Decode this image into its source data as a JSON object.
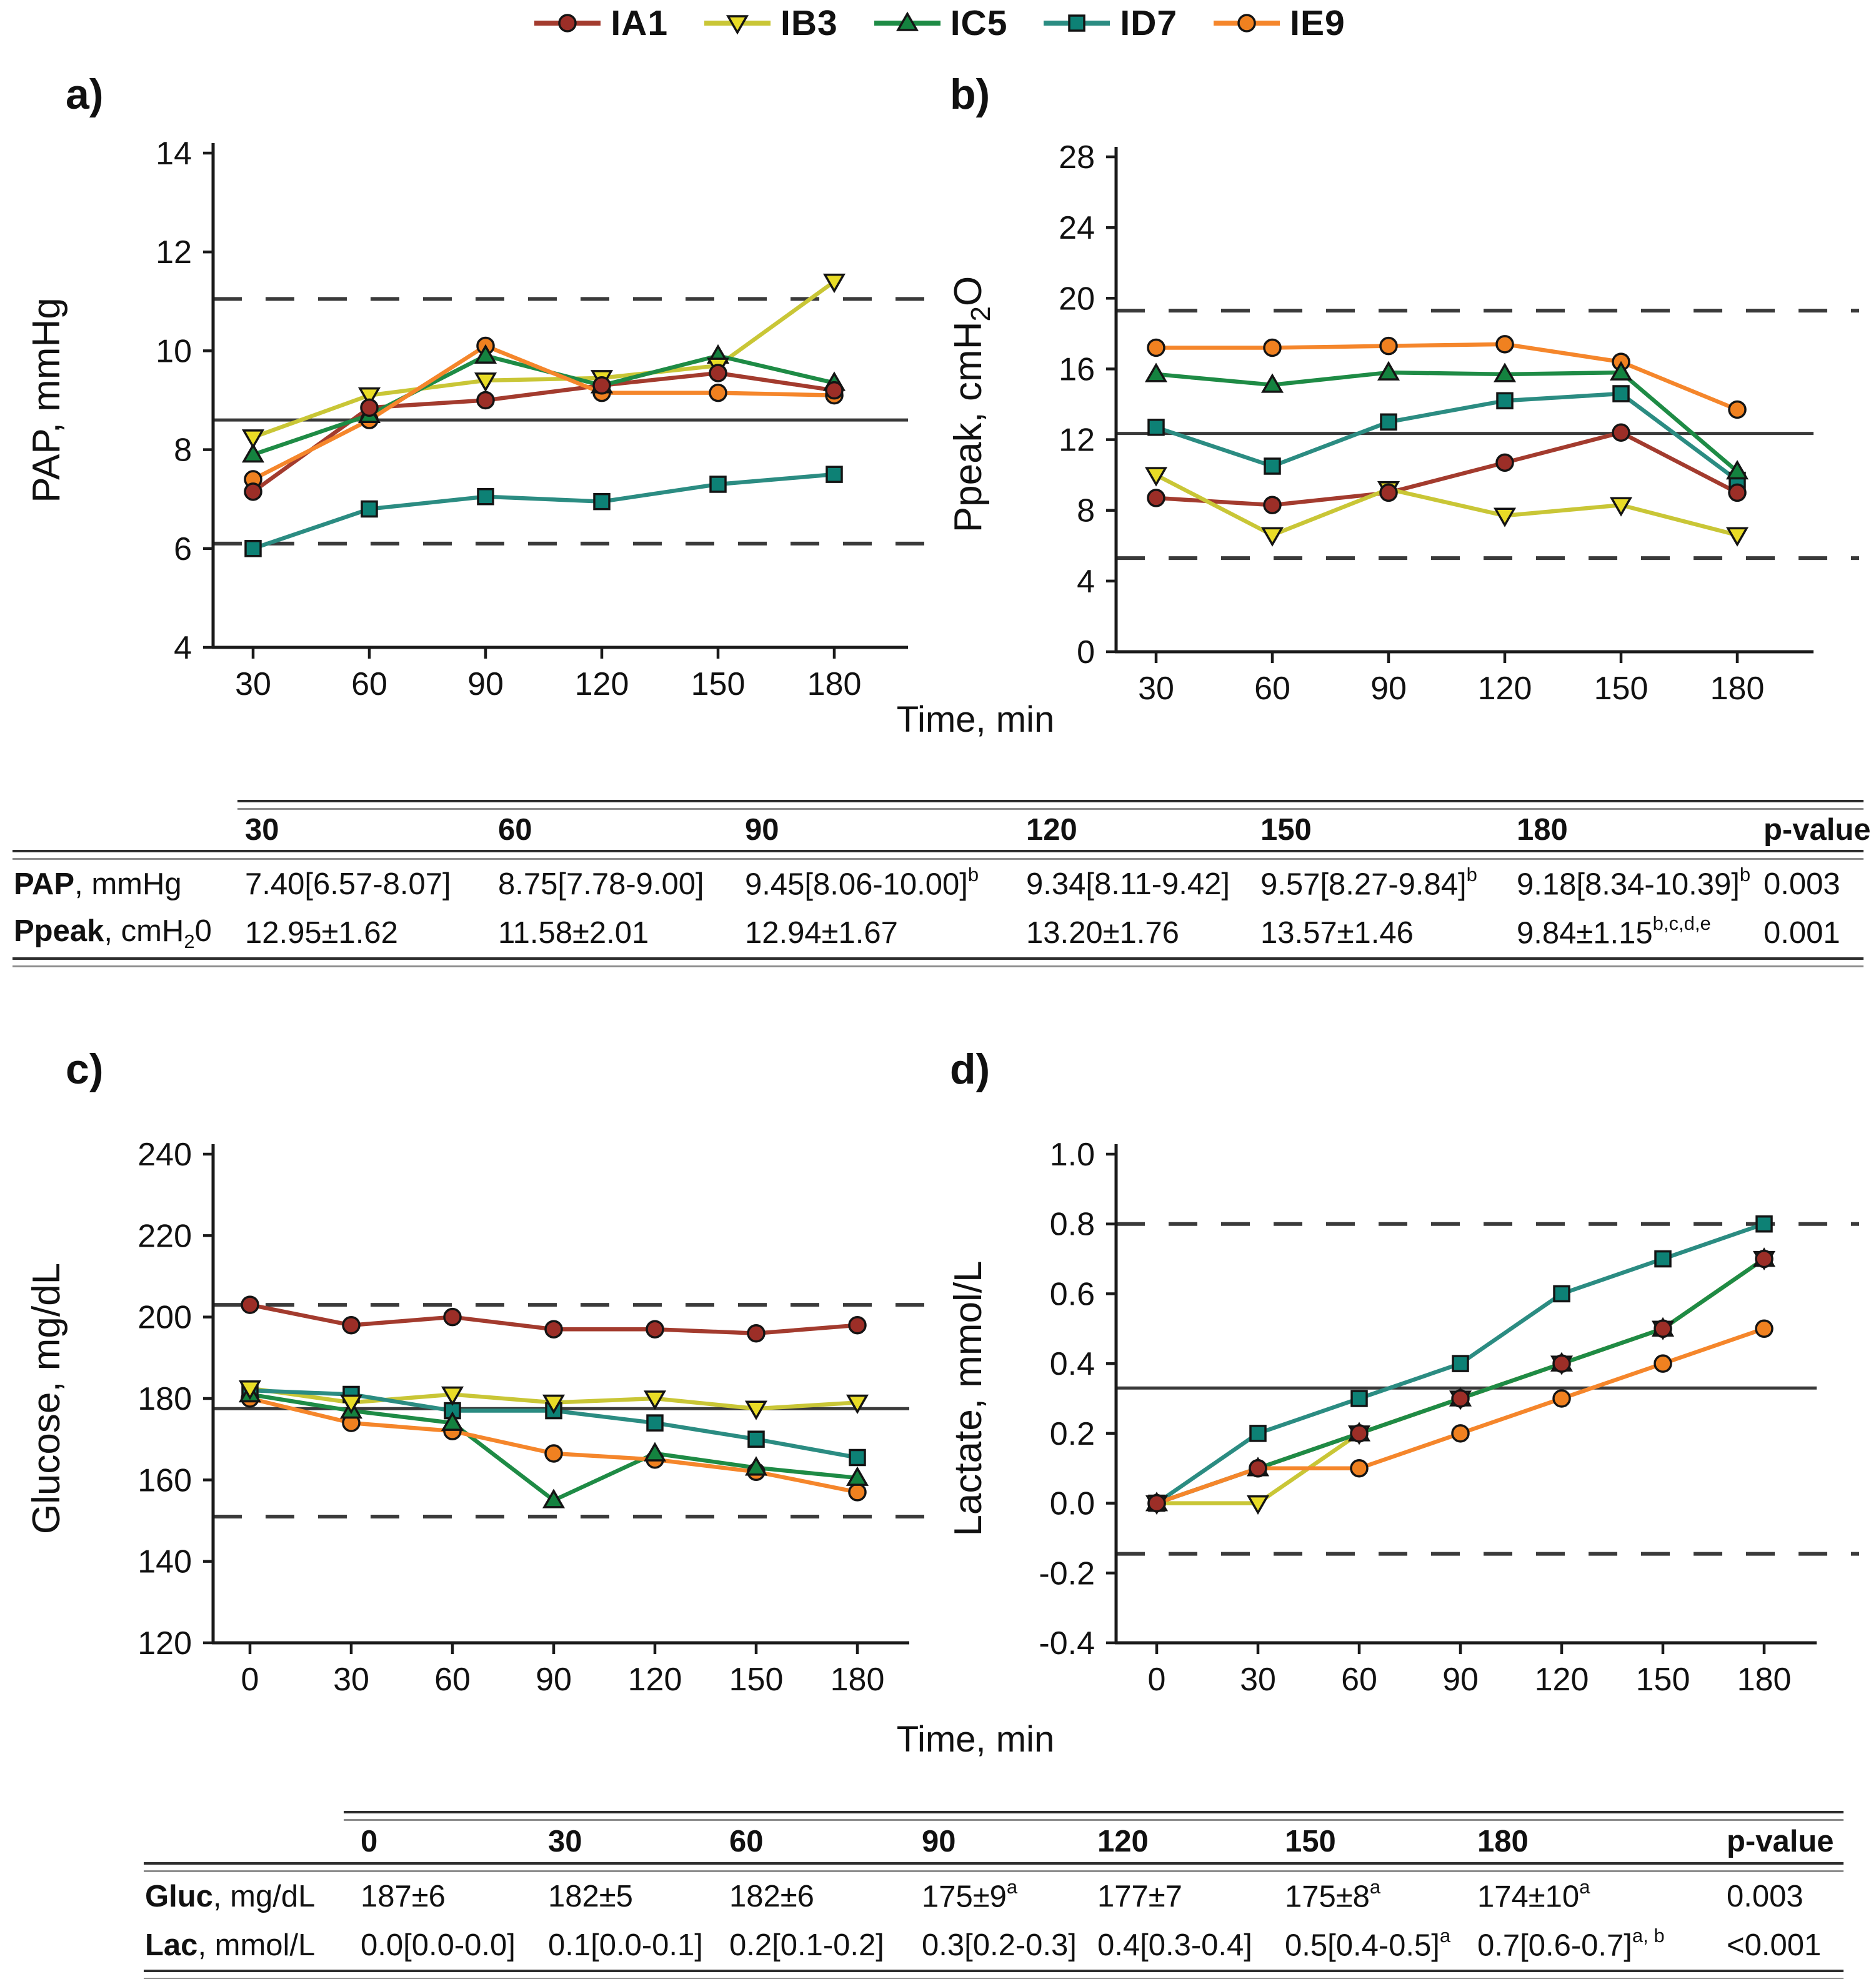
{
  "figure": {
    "x_axis_label_top": "Time, min",
    "x_axis_label_bottom": "Time, min"
  },
  "legend": {
    "items": [
      {
        "label": "IA1",
        "marker": "circle",
        "line_color": "#a33b2e",
        "marker_color": "#9c2e27"
      },
      {
        "label": "IB3",
        "marker": "triangle-down",
        "line_color": "#c9c636",
        "marker_color": "#e9dc26"
      },
      {
        "label": "IC5",
        "marker": "triangle-up",
        "line_color": "#1e8b45",
        "marker_color": "#14823f"
      },
      {
        "label": "ID7",
        "marker": "square",
        "line_color": "#2b8c82",
        "marker_color": "#0d8175"
      },
      {
        "label": "IE9",
        "marker": "circle",
        "line_color": "#f5862b",
        "marker_color": "#f08120"
      }
    ]
  },
  "chart_data": [
    {
      "id": "a",
      "panel_label": "a)",
      "type": "line",
      "ylabel_parts": [
        {
          "t": "PAP, mmHg"
        }
      ],
      "xlabel": "Time, min",
      "x": [
        30,
        60,
        90,
        120,
        150,
        180
      ],
      "ylim": [
        4,
        14
      ],
      "yticks": [
        4,
        6,
        8,
        10,
        12,
        14
      ],
      "ytick_labels": [
        "4",
        "6",
        "8",
        "10",
        "12",
        "14"
      ],
      "ref_solid": 8.6,
      "ref_dashed": [
        11.05,
        6.1
      ],
      "series": [
        {
          "name": "IA1",
          "values": [
            7.15,
            8.85,
            9.0,
            9.3,
            9.55,
            9.2
          ]
        },
        {
          "name": "IB3",
          "values": [
            8.25,
            9.1,
            9.4,
            9.45,
            9.7,
            11.4
          ]
        },
        {
          "name": "IC5",
          "values": [
            7.9,
            8.7,
            9.9,
            9.3,
            9.9,
            9.35
          ]
        },
        {
          "name": "ID7",
          "values": [
            6.0,
            6.8,
            7.05,
            6.95,
            7.3,
            7.5
          ]
        },
        {
          "name": "IE9",
          "values": [
            7.4,
            8.6,
            10.1,
            9.15,
            9.15,
            9.1
          ]
        }
      ]
    },
    {
      "id": "b",
      "panel_label": "b)",
      "type": "line",
      "ylabel_parts": [
        {
          "t": "Ppeak, cmH"
        },
        {
          "t": "2",
          "sub": true
        },
        {
          "t": "O"
        }
      ],
      "xlabel": "Time, min",
      "x": [
        30,
        60,
        90,
        120,
        150,
        180
      ],
      "ylim": [
        0,
        28
      ],
      "yticks": [
        0,
        4,
        8,
        12,
        16,
        20,
        24,
        28
      ],
      "ytick_labels": [
        "0",
        "4",
        "8",
        "12",
        "16",
        "20",
        "24",
        "28"
      ],
      "ref_solid": 12.35,
      "ref_dashed": [
        19.3,
        5.3
      ],
      "series": [
        {
          "name": "IA1",
          "values": [
            8.7,
            8.3,
            9.0,
            10.7,
            12.4,
            9.0
          ]
        },
        {
          "name": "IB3",
          "values": [
            10.0,
            6.6,
            9.2,
            7.7,
            8.3,
            6.6
          ]
        },
        {
          "name": "IC5",
          "values": [
            15.7,
            15.1,
            15.8,
            15.7,
            15.8,
            10.2
          ]
        },
        {
          "name": "ID7",
          "values": [
            12.7,
            10.5,
            13.0,
            14.2,
            14.6,
            9.7
          ]
        },
        {
          "name": "IE9",
          "values": [
            17.2,
            17.2,
            17.3,
            17.4,
            16.4,
            13.7
          ]
        }
      ]
    },
    {
      "id": "c",
      "panel_label": "c)",
      "type": "line",
      "ylabel_parts": [
        {
          "t": "Glucose, mg/dL"
        }
      ],
      "xlabel": "Time, min",
      "x": [
        0,
        30,
        60,
        90,
        120,
        150,
        180
      ],
      "ylim": [
        120,
        240
      ],
      "yticks": [
        120,
        140,
        160,
        180,
        200,
        220,
        240
      ],
      "ytick_labels": [
        "120",
        "140",
        "160",
        "180",
        "200",
        "220",
        "240"
      ],
      "ref_solid": 177.5,
      "ref_dashed": [
        203,
        151
      ],
      "series": [
        {
          "name": "IA1",
          "values": [
            203,
            198,
            200,
            197,
            197,
            196,
            198
          ]
        },
        {
          "name": "IB3",
          "values": [
            182.5,
            179,
            181,
            179,
            180,
            177.5,
            179
          ]
        },
        {
          "name": "IC5",
          "values": [
            181,
            177,
            174,
            155,
            166.5,
            163,
            160.5
          ]
        },
        {
          "name": "ID7",
          "values": [
            182,
            181,
            177,
            177,
            174,
            170,
            165.5
          ]
        },
        {
          "name": "IE9",
          "values": [
            180,
            174,
            172,
            166.5,
            165,
            162,
            157
          ]
        }
      ]
    },
    {
      "id": "d",
      "panel_label": "d)",
      "type": "line",
      "ylabel_parts": [
        {
          "t": "Lactate, mmol/L"
        }
      ],
      "xlabel": "Time, min",
      "x": [
        0,
        30,
        60,
        90,
        120,
        150,
        180
      ],
      "ylim": [
        -0.4,
        1.0
      ],
      "yticks": [
        -0.4,
        -0.2,
        0.0,
        0.2,
        0.4,
        0.6,
        0.8,
        1.0
      ],
      "ytick_labels": [
        "-0.4",
        "-0.2",
        "0.0",
        "0.2",
        "0.4",
        "0.6",
        "0.8",
        "1.0"
      ],
      "ref_solid": 0.33,
      "ref_dashed": [
        0.8,
        -0.145
      ],
      "series": [
        {
          "name": "IA1",
          "values": [
            0.0,
            0.1,
            0.2,
            0.3,
            0.4,
            0.5,
            0.7
          ]
        },
        {
          "name": "IB3",
          "values": [
            0.0,
            0.0,
            0.2,
            0.3,
            0.4,
            0.5,
            0.7
          ]
        },
        {
          "name": "IC5",
          "values": [
            0.0,
            0.1,
            0.2,
            0.3,
            0.4,
            0.5,
            0.7
          ]
        },
        {
          "name": "ID7",
          "values": [
            0.0,
            0.2,
            0.3,
            0.4,
            0.6,
            0.7,
            0.8
          ]
        },
        {
          "name": "IE9",
          "values": [
            0.0,
            0.1,
            0.1,
            0.2,
            0.3,
            0.4,
            0.5
          ]
        }
      ]
    }
  ],
  "tables": [
    {
      "headers": [
        "30",
        "60",
        "90",
        "120",
        "150",
        "180",
        "p-value"
      ],
      "rows": [
        {
          "label": [
            {
              "t": "PAP",
              "b": true
            },
            {
              "t": ", mmHg"
            }
          ],
          "cells": [
            {
              "t": "7.40[6.57-8.07]"
            },
            {
              "t": "8.75[7.78-9.00]"
            },
            {
              "t": "9.45[8.06-10.00]",
              "sup": "b"
            },
            {
              "t": "9.34[8.11-9.42]"
            },
            {
              "t": "9.57[8.27-9.84]",
              "sup": "b"
            },
            {
              "t": "9.18[8.34-10.39]",
              "sup": "b"
            },
            {
              "t": "0.003"
            }
          ]
        },
        {
          "label": [
            {
              "t": "Ppeak",
              "b": true
            },
            {
              "t": ", cmH"
            },
            {
              "t": "2",
              "sub": true
            },
            {
              "t": "0"
            }
          ],
          "cells": [
            {
              "t": "12.95±1.62"
            },
            {
              "t": "11.58±2.01"
            },
            {
              "t": "12.94±1.67"
            },
            {
              "t": "13.20±1.76"
            },
            {
              "t": "13.57±1.46"
            },
            {
              "t": "9.84±1.15",
              "sup": "b,c,d,e"
            },
            {
              "t": "0.001"
            }
          ]
        }
      ]
    },
    {
      "headers": [
        "0",
        "30",
        "60",
        "90",
        "120",
        "150",
        "180",
        "p-value"
      ],
      "rows": [
        {
          "label": [
            {
              "t": "Gluc",
              "b": true
            },
            {
              "t": ", mg/dL"
            }
          ],
          "cells": [
            {
              "t": "187±6"
            },
            {
              "t": "182±5"
            },
            {
              "t": "182±6"
            },
            {
              "t": "175±9",
              "sup": "a"
            },
            {
              "t": "177±7"
            },
            {
              "t": "175±8",
              "sup": "a"
            },
            {
              "t": "174±10",
              "sup": "a"
            },
            {
              "t": "0.003"
            }
          ]
        },
        {
          "label": [
            {
              "t": "Lac",
              "b": true
            },
            {
              "t": ", mmol/L"
            }
          ],
          "cells": [
            {
              "t": "0.0[0.0-0.0]"
            },
            {
              "t": "0.1[0.0-0.1]"
            },
            {
              "t": "0.2[0.1-0.2]"
            },
            {
              "t": "0.3[0.2-0.3]"
            },
            {
              "t": "0.4[0.3-0.4]"
            },
            {
              "t": "0.5[0.4-0.5]",
              "sup": "a"
            },
            {
              "t": "0.7[0.6-0.7]",
              "sup": "a, b"
            },
            {
              "t": "<0.001"
            }
          ]
        }
      ]
    }
  ]
}
